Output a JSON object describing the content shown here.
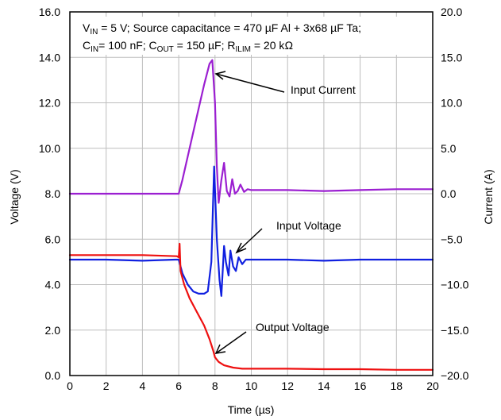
{
  "chart_data": {
    "type": "line",
    "xlabel": "Time (µs)",
    "ylabel_left": "Voltage (V)",
    "ylabel_right": "Current (A)",
    "xlim": [
      0,
      20
    ],
    "ylim_left": [
      0,
      16
    ],
    "ylim_right": [
      -20,
      20
    ],
    "x_ticks": [
      "0",
      "2",
      "4",
      "6",
      "8",
      "10",
      "12",
      "14",
      "16",
      "18",
      "20"
    ],
    "y_left_ticks": [
      "0.0",
      "2.0",
      "4.0",
      "6.0",
      "8.0",
      "10.0",
      "12.0",
      "14.0",
      "16.0"
    ],
    "y_right_ticks": [
      "−20.0",
      "−15.0",
      "−10.0",
      "−5.0",
      "0.0",
      "5.0",
      "10.0",
      "15.0",
      "20.0"
    ],
    "conditions": {
      "line1": [
        "V",
        "IN",
        " = 5 V; Source capacitance = 470 µF Al + 3x68 µF Ta;"
      ],
      "line2": [
        "C",
        "IN",
        "= 100 nF; C",
        "OUT",
        " = 150 µF; R",
        "ILIM",
        " = 20 kΩ"
      ]
    },
    "annotations": {
      "input_current": "Input Current",
      "input_voltage": "Input Voltage",
      "output_voltage": "Output Voltage"
    },
    "grid": true,
    "series": [
      {
        "name": "Input Current",
        "axis": "right",
        "color": "#9b1fd1",
        "x": [
          0,
          6.0,
          6.2,
          6.6,
          7.0,
          7.4,
          7.7,
          7.85,
          8.0,
          8.1,
          8.2,
          8.35,
          8.5,
          8.65,
          8.8,
          8.95,
          9.1,
          9.25,
          9.4,
          9.6,
          9.8,
          10.0,
          12,
          14,
          16,
          18,
          20
        ],
        "y": [
          0.0,
          0.0,
          1.5,
          5.0,
          8.5,
          12.0,
          14.3,
          14.7,
          10.0,
          3.0,
          -1.0,
          1.5,
          3.4,
          0.3,
          -0.3,
          1.6,
          0.0,
          0.3,
          1.0,
          0.2,
          0.5,
          0.4,
          0.4,
          0.3,
          0.4,
          0.5,
          0.5
        ]
      },
      {
        "name": "Input Voltage",
        "axis": "left",
        "color": "#1020e0",
        "x": [
          0,
          2,
          4,
          5.8,
          6.0,
          6.2,
          6.5,
          6.8,
          7.1,
          7.4,
          7.6,
          7.8,
          7.95,
          8.1,
          8.25,
          8.35,
          8.5,
          8.6,
          8.75,
          8.85,
          9.0,
          9.15,
          9.3,
          9.5,
          9.7,
          10.0,
          12,
          14,
          16,
          18,
          20
        ],
        "y": [
          5.1,
          5.1,
          5.05,
          5.1,
          5.1,
          4.5,
          4.0,
          3.7,
          3.6,
          3.6,
          3.7,
          5.0,
          9.2,
          6.0,
          4.2,
          3.5,
          5.7,
          5.0,
          4.4,
          5.5,
          4.8,
          4.6,
          5.2,
          4.9,
          5.1,
          5.1,
          5.1,
          5.05,
          5.1,
          5.1,
          5.1
        ]
      },
      {
        "name": "Output Voltage",
        "axis": "left",
        "color": "#ee1010",
        "x": [
          0,
          2,
          4,
          5.9,
          6.0,
          6.05,
          6.1,
          6.3,
          6.6,
          7.0,
          7.4,
          7.7,
          7.9,
          8.0,
          8.2,
          8.5,
          9.0,
          9.5,
          10.0,
          12,
          14,
          16,
          18,
          20
        ],
        "y": [
          5.3,
          5.3,
          5.3,
          5.25,
          5.2,
          5.8,
          4.6,
          4.0,
          3.4,
          2.8,
          2.2,
          1.6,
          1.1,
          0.8,
          0.6,
          0.45,
          0.35,
          0.3,
          0.3,
          0.3,
          0.28,
          0.28,
          0.25,
          0.25
        ]
      }
    ]
  }
}
